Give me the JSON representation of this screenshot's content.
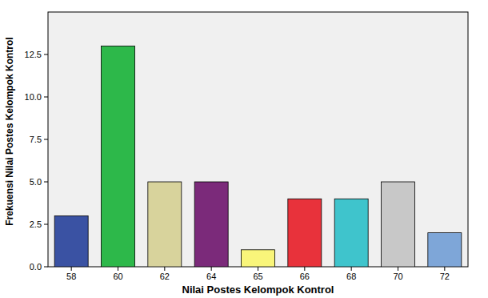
{
  "chart_data": {
    "type": "bar",
    "x_label": "Nilai Postes Kelompok Kontrol",
    "y_label": "Frekuensi Nilai Postes Kelompok Kontrol",
    "categories": [
      "58",
      "60",
      "62",
      "64",
      "65",
      "66",
      "68",
      "70",
      "72"
    ],
    "values": [
      3,
      13,
      5,
      5,
      1,
      4,
      4,
      5,
      2
    ],
    "colors": [
      "#3a52a3",
      "#2db84a",
      "#d8d39c",
      "#7b2a7a",
      "#f9f57a",
      "#e8323b",
      "#3fc4cc",
      "#c8c8c8",
      "#7ea6d8"
    ],
    "ylim": [
      0,
      15
    ],
    "yticks": [
      {
        "value": 0,
        "label": "0.0"
      },
      2.5,
      {
        "value": 5,
        "label": "5.0"
      },
      7.5,
      {
        "value": 10,
        "label": "10.0"
      },
      12.5
    ],
    "grid": false
  }
}
